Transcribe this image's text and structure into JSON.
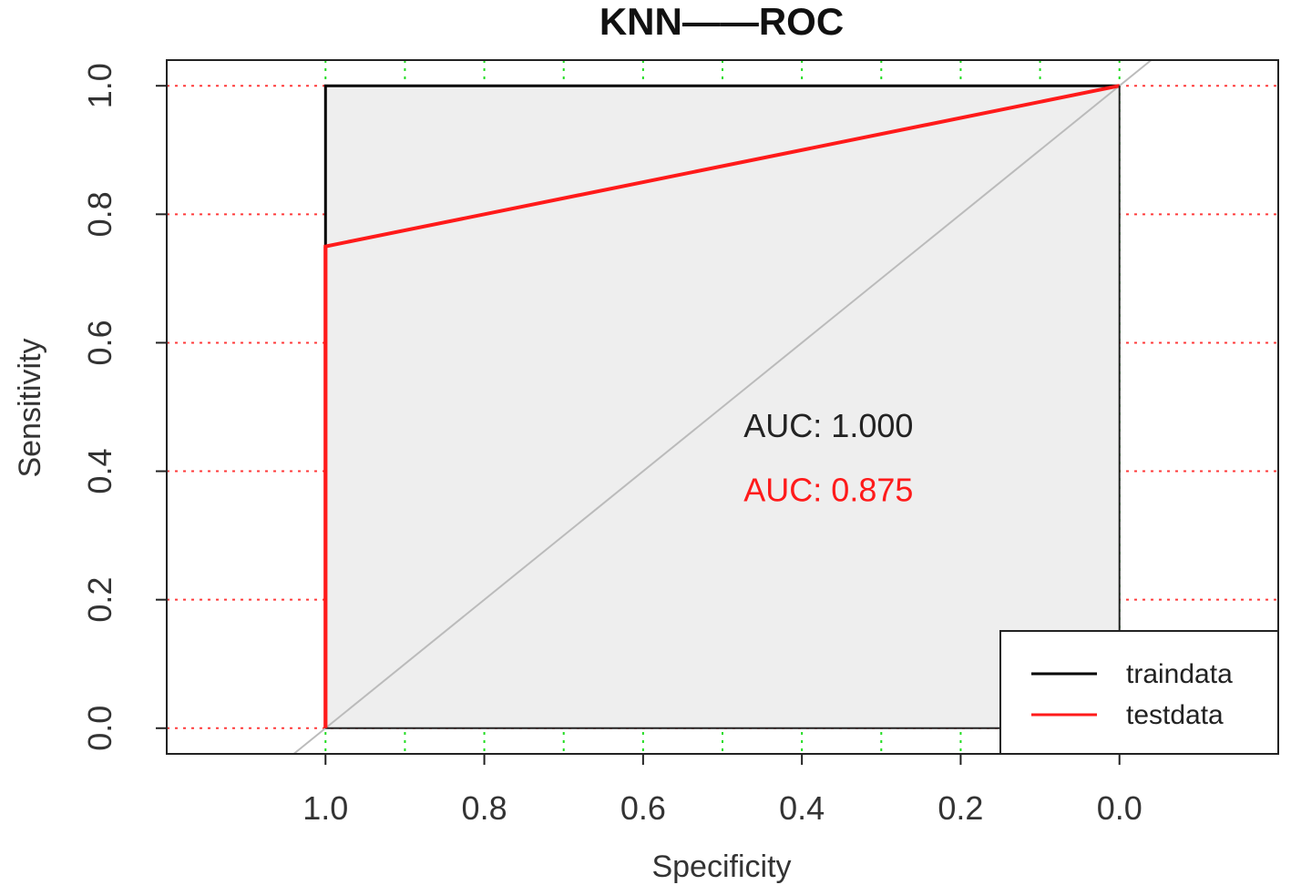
{
  "chart_data": {
    "type": "line",
    "title": "KNN——ROC",
    "xlabel": "Specificity",
    "ylabel": "Sensitivity",
    "x_reversed": true,
    "xlim": [
      1.2,
      -0.2
    ],
    "ylim": [
      -0.04,
      1.04
    ],
    "x_ticks": [
      "1.0",
      "0.8",
      "0.6",
      "0.4",
      "0.2",
      "0.0"
    ],
    "y_ticks": [
      "0.0",
      "0.2",
      "0.4",
      "0.6",
      "0.8",
      "1.0"
    ],
    "grid": {
      "horizontal": {
        "color": "#ff3b3b",
        "style": "dotted",
        "at": [
          0.0,
          0.2,
          0.4,
          0.6,
          0.8,
          1.0
        ]
      },
      "vertical": {
        "color": "#22dd22",
        "style": "dotted",
        "at": [
          1.0,
          0.9,
          0.8,
          0.7,
          0.6,
          0.5,
          0.4,
          0.3,
          0.2,
          0.1,
          0.0
        ]
      }
    },
    "polygon_fill": "#eeeeee",
    "series": [
      {
        "name": "traindata",
        "color": "#000000",
        "points": [
          [
            1.0,
            0.0
          ],
          [
            1.0,
            1.0
          ],
          [
            0.0,
            1.0
          ]
        ]
      },
      {
        "name": "testdata",
        "color": "#ff1a1a",
        "points": [
          [
            1.0,
            0.0
          ],
          [
            1.0,
            0.75
          ],
          [
            0.0,
            1.0
          ]
        ]
      }
    ],
    "diagonal_color": "#bbbbbb",
    "annotations": [
      {
        "text": "AUC: 1.000",
        "color": "#222222",
        "x": 0.37,
        "y": 0.47
      },
      {
        "text": "AUC: 0.875",
        "color": "#ff1a1a",
        "x": 0.37,
        "y": 0.37
      }
    ],
    "legend": {
      "position": "bottom-right",
      "entries": [
        {
          "label": "traindata",
          "color": "#000000"
        },
        {
          "label": "testdata",
          "color": "#ff1a1a"
        }
      ]
    }
  }
}
